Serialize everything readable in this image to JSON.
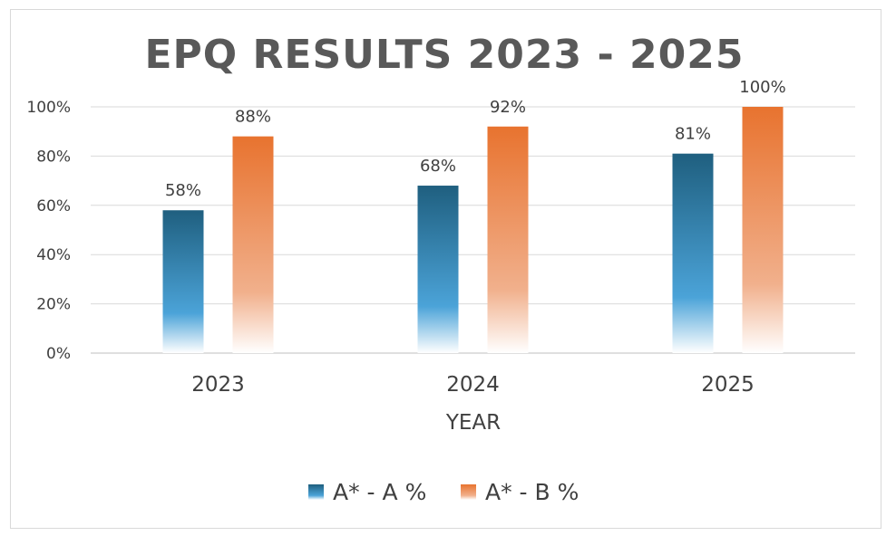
{
  "chart_data": {
    "type": "bar",
    "title": "EPQ RESULTS 2023 - 2025",
    "xlabel": "YEAR",
    "ylabel": "",
    "categories": [
      "2023",
      "2024",
      "2025"
    ],
    "series": [
      {
        "name": "A* - A %",
        "values": [
          58,
          68,
          81
        ],
        "labels": [
          "58%",
          "68%",
          "81%"
        ],
        "color_top": "#1F5F7F",
        "color_mid": "#4BA3D8",
        "color_bottom": "#FFFFFF"
      },
      {
        "name": "A* - B %",
        "values": [
          88,
          92,
          100
        ],
        "labels": [
          "88%",
          "92%",
          "100%"
        ],
        "color_top": "#E8732F",
        "color_mid": "#F1B08C",
        "color_bottom": "#FFFFFF"
      }
    ],
    "ylim": [
      0,
      100
    ],
    "yticks": [
      0,
      20,
      40,
      60,
      80,
      100
    ],
    "ytick_labels": [
      "0%",
      "20%",
      "40%",
      "60%",
      "80%",
      "100%"
    ],
    "grid": true,
    "legend_position": "bottom"
  },
  "colors": {
    "frame_border": "#d9d9d9",
    "gridline": "#d9d9d9",
    "text": "#404040",
    "title": "#595959"
  }
}
